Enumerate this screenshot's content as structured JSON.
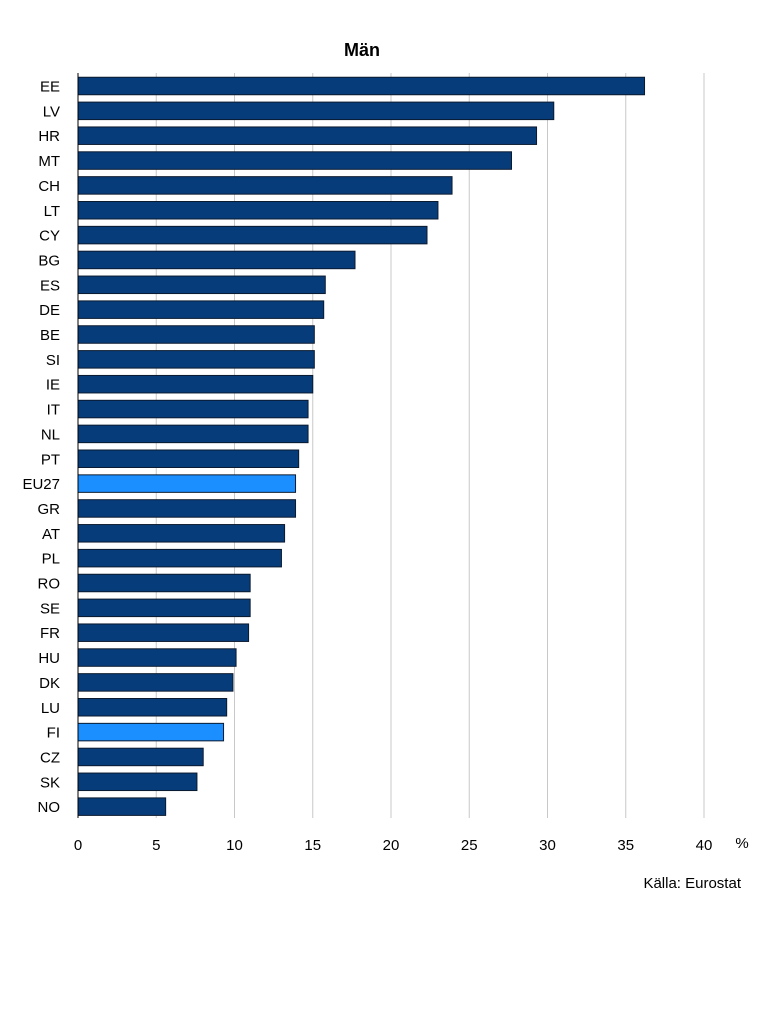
{
  "chart_data": {
    "type": "bar",
    "orientation": "horizontal",
    "title": "Män",
    "categories": [
      "EE",
      "LV",
      "HR",
      "MT",
      "CH",
      "LT",
      "CY",
      "BG",
      "ES",
      "DE",
      "BE",
      "SI",
      "IE",
      "IT",
      "NL",
      "PT",
      "EU27",
      "GR",
      "AT",
      "PL",
      "RO",
      "SE",
      "FR",
      "HU",
      "DK",
      "LU",
      "FI",
      "CZ",
      "SK",
      "NO"
    ],
    "values": [
      36.2,
      30.4,
      29.3,
      27.7,
      23.9,
      23.0,
      22.3,
      17.7,
      15.8,
      15.7,
      15.1,
      15.1,
      15.0,
      14.7,
      14.7,
      14.1,
      13.9,
      13.9,
      13.2,
      13.0,
      11.0,
      11.0,
      10.9,
      10.1,
      9.9,
      9.5,
      9.3,
      8.0,
      7.6,
      5.6
    ],
    "highlighted": [
      "EU27",
      "FI"
    ],
    "xlim": [
      0,
      40
    ],
    "xticks": [
      0,
      5,
      10,
      15,
      20,
      25,
      30,
      35,
      40
    ],
    "x_unit": "%",
    "grid": "vertical",
    "legend": "none",
    "source": "Källa: Eurostat",
    "colors": {
      "bar": "#073c7a",
      "highlight": "#1b8fff",
      "bar_stroke": "#0a1a30",
      "grid": "#c8c8c8"
    }
  }
}
